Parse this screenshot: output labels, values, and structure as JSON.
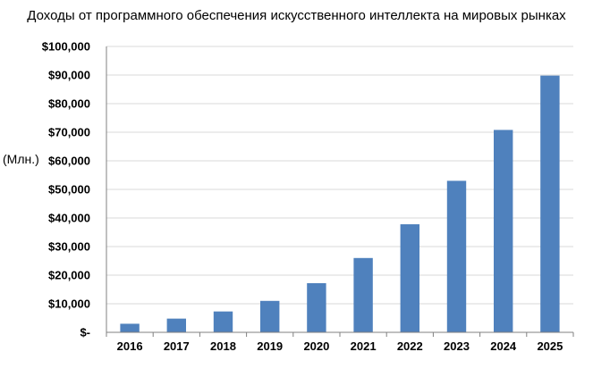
{
  "chart_data": {
    "type": "bar",
    "title": "Доходы от программного обеспечения искусственного интеллекта на мировых рынках",
    "ylabel": "(Млн.)",
    "xlabel": "",
    "categories": [
      "2016",
      "2017",
      "2018",
      "2019",
      "2020",
      "2021",
      "2022",
      "2023",
      "2024",
      "2025"
    ],
    "values": [
      3000,
      4800,
      7300,
      11000,
      17200,
      26000,
      37800,
      53000,
      70800,
      89800
    ],
    "ylim": [
      0,
      100000
    ],
    "yticks": [
      0,
      10000,
      20000,
      30000,
      40000,
      50000,
      60000,
      70000,
      80000,
      90000,
      100000
    ],
    "ytick_labels": [
      "$-",
      "$10,000",
      "$20,000",
      "$30,000",
      "$40,000",
      "$50,000",
      "$60,000",
      "$70,000",
      "$80,000",
      "$90,000",
      "$100,000"
    ],
    "grid": true,
    "legend": "none",
    "bar_color": "#4f81bd",
    "grid_color": "#d9d9d9",
    "axis_color": "#808080"
  }
}
